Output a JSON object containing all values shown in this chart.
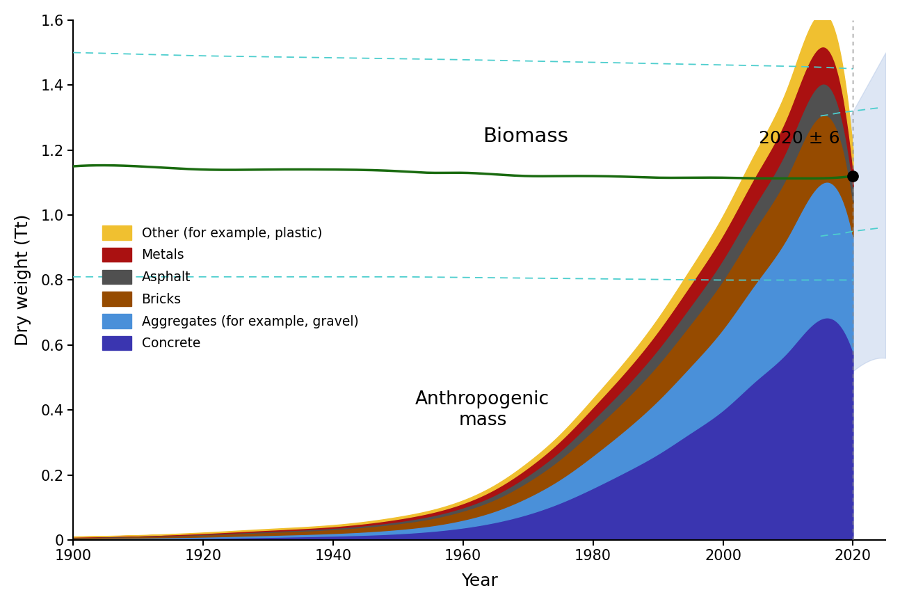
{
  "years": [
    1900,
    1910,
    1920,
    1930,
    1940,
    1950,
    1955,
    1960,
    1965,
    1970,
    1975,
    1980,
    1985,
    1990,
    1995,
    2000,
    2005,
    2010,
    2015,
    2020
  ],
  "concrete": [
    0.003,
    0.004,
    0.006,
    0.009,
    0.013,
    0.02,
    0.027,
    0.038,
    0.055,
    0.08,
    0.115,
    0.16,
    0.21,
    0.265,
    0.33,
    0.4,
    0.49,
    0.58,
    0.68,
    0.58
  ],
  "aggregates": [
    0.002,
    0.003,
    0.004,
    0.006,
    0.008,
    0.013,
    0.017,
    0.024,
    0.035,
    0.052,
    0.073,
    0.1,
    0.13,
    0.165,
    0.205,
    0.25,
    0.3,
    0.355,
    0.415,
    0.355
  ],
  "bricks": [
    0.003,
    0.004,
    0.006,
    0.009,
    0.012,
    0.018,
    0.022,
    0.028,
    0.036,
    0.048,
    0.062,
    0.078,
    0.093,
    0.11,
    0.13,
    0.15,
    0.17,
    0.19,
    0.21,
    0.105
  ],
  "asphalt": [
    0.001,
    0.001,
    0.002,
    0.003,
    0.004,
    0.006,
    0.008,
    0.01,
    0.014,
    0.019,
    0.025,
    0.032,
    0.039,
    0.047,
    0.055,
    0.064,
    0.074,
    0.085,
    0.097,
    0.048
  ],
  "metals": [
    0.001,
    0.002,
    0.003,
    0.004,
    0.005,
    0.008,
    0.01,
    0.013,
    0.018,
    0.024,
    0.031,
    0.039,
    0.047,
    0.056,
    0.066,
    0.076,
    0.088,
    0.101,
    0.115,
    0.057
  ],
  "other": [
    0.001,
    0.001,
    0.002,
    0.003,
    0.004,
    0.006,
    0.007,
    0.009,
    0.012,
    0.016,
    0.02,
    0.026,
    0.032,
    0.039,
    0.048,
    0.058,
    0.07,
    0.085,
    0.103,
    0.055
  ],
  "biomass": [
    1.15,
    1.15,
    1.14,
    1.14,
    1.14,
    1.135,
    1.13,
    1.13,
    1.125,
    1.12,
    1.12,
    1.12,
    1.118,
    1.115,
    1.115,
    1.115,
    1.113,
    1.113,
    1.113,
    1.12
  ],
  "bio_upper_x": [
    1900,
    1910,
    1920,
    1930,
    1940,
    1950,
    1960,
    1970,
    1980,
    1990,
    2000,
    2010,
    2020
  ],
  "bio_upper": [
    1.5,
    1.495,
    1.49,
    1.487,
    1.484,
    1.481,
    1.478,
    1.474,
    1.47,
    1.466,
    1.462,
    1.458,
    1.45
  ],
  "bio_lower_x": [
    1900,
    1910,
    1920,
    1930,
    1940,
    1950,
    1960,
    1970,
    1980,
    1990,
    2000,
    2010,
    2020
  ],
  "bio_lower": [
    0.81,
    0.81,
    0.81,
    0.81,
    0.81,
    0.81,
    0.808,
    0.806,
    0.804,
    0.802,
    0.8,
    0.8,
    0.8
  ],
  "bio_upper2_x": [
    2015,
    2016,
    2018,
    2020,
    2022,
    2024
  ],
  "bio_upper2": [
    1.305,
    1.308,
    1.315,
    1.32,
    1.325,
    1.33
  ],
  "bio_lower2_x": [
    2015,
    2016,
    2018,
    2020,
    2022,
    2024
  ],
  "bio_lower2": [
    0.935,
    0.938,
    0.942,
    0.95,
    0.955,
    0.96
  ],
  "anthro_unc_x": [
    1900,
    1910,
    1920,
    1930,
    1940,
    1950,
    1960,
    1970,
    1980,
    1990,
    2000,
    2010,
    2015,
    2020
  ],
  "anthro_upper": [
    0.015,
    0.02,
    0.03,
    0.043,
    0.06,
    0.09,
    0.14,
    0.23,
    0.36,
    0.53,
    0.74,
    1.0,
    1.15,
    1.32
  ],
  "anthro_lower": [
    0.005,
    0.008,
    0.012,
    0.017,
    0.024,
    0.036,
    0.055,
    0.09,
    0.14,
    0.2,
    0.27,
    0.36,
    0.43,
    0.52
  ],
  "concrete_color": "#3a35b0",
  "aggregates_color": "#4a90d9",
  "bricks_color": "#964B00",
  "asphalt_color": "#505050",
  "metals_color": "#aa1111",
  "other_color": "#f0c030",
  "biomass_color": "#1a6b10",
  "uncertainty_color": "#4ecece",
  "anthro_unc_color": "#a0b8e0",
  "xlabel": "Year",
  "ylabel": "Dry weight (Tt)",
  "ylim": [
    0,
    1.6
  ],
  "xlim": [
    1900,
    2025
  ],
  "biomass_label": "Biomass",
  "anthro_label": "Anthropogenic\nmass",
  "annotation": "2020 ± 6"
}
